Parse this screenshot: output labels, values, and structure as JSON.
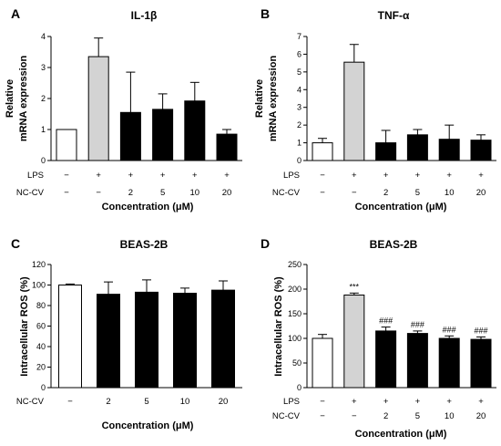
{
  "chart_data": [
    {
      "panel": "A",
      "type": "bar",
      "title": "IL-1β",
      "ylabel": [
        "Relative",
        "mRNA expression"
      ],
      "xlabel": "Concentration (μM)",
      "ylim": [
        0,
        4
      ],
      "yticks": [
        "0",
        "1",
        "2",
        "3",
        "4"
      ],
      "row_labels": [
        "LPS",
        "NC-CV"
      ],
      "categories": [
        [
          "−",
          "−"
        ],
        [
          "+",
          "−"
        ],
        [
          "+",
          "2"
        ],
        [
          "+",
          "5"
        ],
        [
          "+",
          "10"
        ],
        [
          "+",
          "20"
        ]
      ],
      "values": [
        1.0,
        3.35,
        1.55,
        1.65,
        1.92,
        0.85
      ],
      "errors": [
        0,
        0.6,
        1.3,
        0.5,
        0.6,
        0.15
      ],
      "fills": [
        "#ffffff",
        "#d3d3d3",
        "#000000",
        "#000000",
        "#000000",
        "#000000"
      ],
      "annotations": [
        "",
        "",
        "",
        "",
        "",
        ""
      ]
    },
    {
      "panel": "B",
      "type": "bar",
      "title": "TNF-α",
      "ylabel": [
        "Relative",
        "mRNA expression"
      ],
      "xlabel": "Concentration (μM)",
      "ylim": [
        0,
        7
      ],
      "yticks": [
        "0",
        "1",
        "2",
        "3",
        "4",
        "5",
        "6",
        "7"
      ],
      "row_labels": [
        "LPS",
        "NC-CV"
      ],
      "categories": [
        [
          "−",
          "−"
        ],
        [
          "+",
          "−"
        ],
        [
          "+",
          "2"
        ],
        [
          "+",
          "5"
        ],
        [
          "+",
          "10"
        ],
        [
          "+",
          "20"
        ]
      ],
      "values": [
        1.0,
        5.55,
        1.0,
        1.45,
        1.2,
        1.15
      ],
      "errors": [
        0.25,
        1.0,
        0.7,
        0.3,
        0.8,
        0.3
      ],
      "fills": [
        "#ffffff",
        "#d3d3d3",
        "#000000",
        "#000000",
        "#000000",
        "#000000"
      ],
      "annotations": [
        "",
        "",
        "",
        "",
        "",
        ""
      ]
    },
    {
      "panel": "C",
      "type": "bar",
      "title": "BEAS-2B",
      "ylabel": [
        "Intracellular ROS (%)"
      ],
      "xlabel": "Concentration (μM)",
      "ylim": [
        0,
        120
      ],
      "yticks": [
        "0",
        "20",
        "40",
        "60",
        "80",
        "100",
        "120"
      ],
      "row_labels": [
        "NC-CV"
      ],
      "categories": [
        [
          "−"
        ],
        [
          "2"
        ],
        [
          "5"
        ],
        [
          "10"
        ],
        [
          "20"
        ]
      ],
      "values": [
        100,
        91,
        93,
        92,
        95
      ],
      "errors": [
        1,
        12,
        12,
        5,
        9
      ],
      "fills": [
        "#ffffff",
        "#000000",
        "#000000",
        "#000000",
        "#000000"
      ],
      "annotations": [
        "",
        "",
        "",
        "",
        ""
      ]
    },
    {
      "panel": "D",
      "type": "bar",
      "title": "BEAS-2B",
      "ylabel": [
        "Intracellular ROS (%)"
      ],
      "xlabel": "Concentration (μM)",
      "ylim": [
        0,
        250
      ],
      "yticks": [
        "0",
        "50",
        "100",
        "150",
        "200",
        "250"
      ],
      "row_labels": [
        "LPS",
        "NC-CV"
      ],
      "categories": [
        [
          "−",
          "−"
        ],
        [
          "+",
          "−"
        ],
        [
          "+",
          "2"
        ],
        [
          "+",
          "5"
        ],
        [
          "+",
          "10"
        ],
        [
          "+",
          "20"
        ]
      ],
      "values": [
        100,
        188,
        115,
        110,
        100,
        98
      ],
      "errors": [
        8,
        4,
        8,
        5,
        5,
        5
      ],
      "fills": [
        "#ffffff",
        "#d3d3d3",
        "#000000",
        "#000000",
        "#000000",
        "#000000"
      ],
      "annotations": [
        "",
        "***",
        "###",
        "###",
        "###",
        "###"
      ]
    }
  ]
}
